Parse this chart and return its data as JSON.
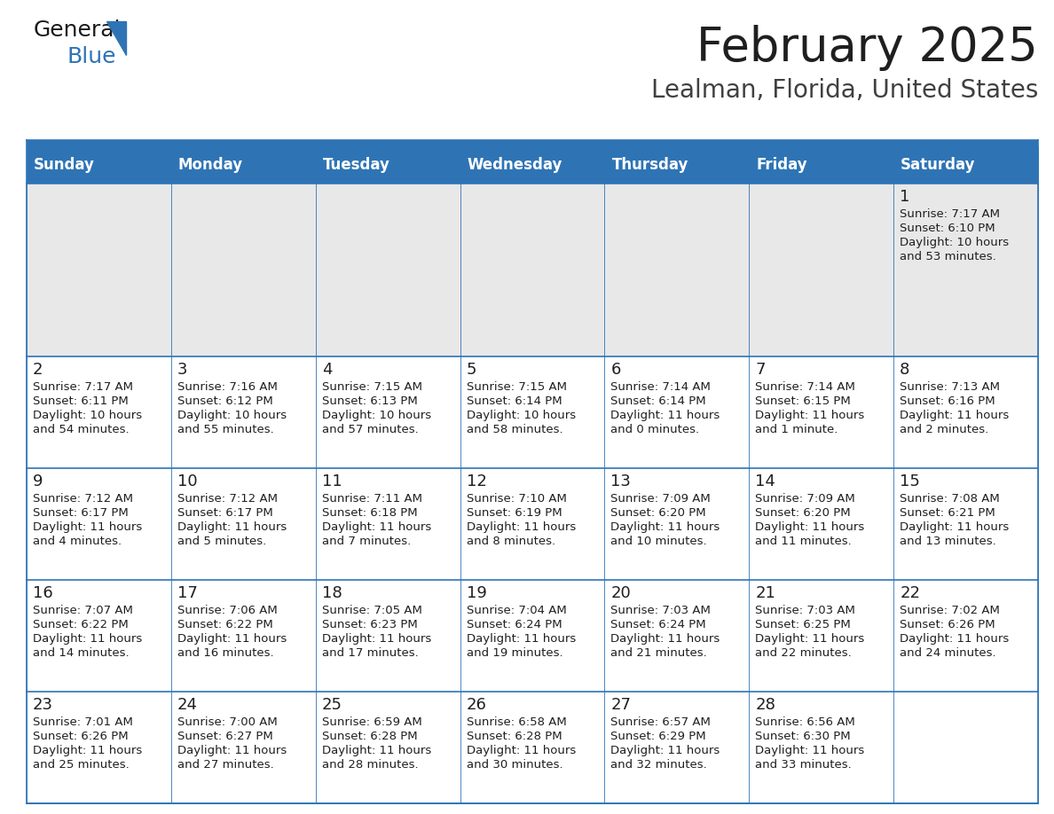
{
  "title": "February 2025",
  "subtitle": "Lealman, Florida, United States",
  "header_bg": "#2E74B5",
  "header_text_color": "#FFFFFF",
  "row0_bg": "#E8E8E8",
  "cell_bg_white": "#FFFFFF",
  "border_color": "#2E74B5",
  "day_headers": [
    "Sunday",
    "Monday",
    "Tuesday",
    "Wednesday",
    "Thursday",
    "Friday",
    "Saturday"
  ],
  "title_color": "#1F1F1F",
  "subtitle_color": "#404040",
  "cell_text_color": "#1F1F1F",
  "logo_general_color": "#1A1A1A",
  "logo_blue_color": "#2E74B5",
  "logo_triangle_color": "#2E74B5",
  "days": [
    {
      "day": 1,
      "col": 6,
      "row": 0,
      "sunrise": "7:17 AM",
      "sunset": "6:10 PM",
      "daylight": "10 hours and 53 minutes."
    },
    {
      "day": 2,
      "col": 0,
      "row": 1,
      "sunrise": "7:17 AM",
      "sunset": "6:11 PM",
      "daylight": "10 hours and 54 minutes."
    },
    {
      "day": 3,
      "col": 1,
      "row": 1,
      "sunrise": "7:16 AM",
      "sunset": "6:12 PM",
      "daylight": "10 hours and 55 minutes."
    },
    {
      "day": 4,
      "col": 2,
      "row": 1,
      "sunrise": "7:15 AM",
      "sunset": "6:13 PM",
      "daylight": "10 hours and 57 minutes."
    },
    {
      "day": 5,
      "col": 3,
      "row": 1,
      "sunrise": "7:15 AM",
      "sunset": "6:14 PM",
      "daylight": "10 hours and 58 minutes."
    },
    {
      "day": 6,
      "col": 4,
      "row": 1,
      "sunrise": "7:14 AM",
      "sunset": "6:14 PM",
      "daylight": "11 hours and 0 minutes."
    },
    {
      "day": 7,
      "col": 5,
      "row": 1,
      "sunrise": "7:14 AM",
      "sunset": "6:15 PM",
      "daylight": "11 hours and 1 minute."
    },
    {
      "day": 8,
      "col": 6,
      "row": 1,
      "sunrise": "7:13 AM",
      "sunset": "6:16 PM",
      "daylight": "11 hours and 2 minutes."
    },
    {
      "day": 9,
      "col": 0,
      "row": 2,
      "sunrise": "7:12 AM",
      "sunset": "6:17 PM",
      "daylight": "11 hours and 4 minutes."
    },
    {
      "day": 10,
      "col": 1,
      "row": 2,
      "sunrise": "7:12 AM",
      "sunset": "6:17 PM",
      "daylight": "11 hours and 5 minutes."
    },
    {
      "day": 11,
      "col": 2,
      "row": 2,
      "sunrise": "7:11 AM",
      "sunset": "6:18 PM",
      "daylight": "11 hours and 7 minutes."
    },
    {
      "day": 12,
      "col": 3,
      "row": 2,
      "sunrise": "7:10 AM",
      "sunset": "6:19 PM",
      "daylight": "11 hours and 8 minutes."
    },
    {
      "day": 13,
      "col": 4,
      "row": 2,
      "sunrise": "7:09 AM",
      "sunset": "6:20 PM",
      "daylight": "11 hours and 10 minutes."
    },
    {
      "day": 14,
      "col": 5,
      "row": 2,
      "sunrise": "7:09 AM",
      "sunset": "6:20 PM",
      "daylight": "11 hours and 11 minutes."
    },
    {
      "day": 15,
      "col": 6,
      "row": 2,
      "sunrise": "7:08 AM",
      "sunset": "6:21 PM",
      "daylight": "11 hours and 13 minutes."
    },
    {
      "day": 16,
      "col": 0,
      "row": 3,
      "sunrise": "7:07 AM",
      "sunset": "6:22 PM",
      "daylight": "11 hours and 14 minutes."
    },
    {
      "day": 17,
      "col": 1,
      "row": 3,
      "sunrise": "7:06 AM",
      "sunset": "6:22 PM",
      "daylight": "11 hours and 16 minutes."
    },
    {
      "day": 18,
      "col": 2,
      "row": 3,
      "sunrise": "7:05 AM",
      "sunset": "6:23 PM",
      "daylight": "11 hours and 17 minutes."
    },
    {
      "day": 19,
      "col": 3,
      "row": 3,
      "sunrise": "7:04 AM",
      "sunset": "6:24 PM",
      "daylight": "11 hours and 19 minutes."
    },
    {
      "day": 20,
      "col": 4,
      "row": 3,
      "sunrise": "7:03 AM",
      "sunset": "6:24 PM",
      "daylight": "11 hours and 21 minutes."
    },
    {
      "day": 21,
      "col": 5,
      "row": 3,
      "sunrise": "7:03 AM",
      "sunset": "6:25 PM",
      "daylight": "11 hours and 22 minutes."
    },
    {
      "day": 22,
      "col": 6,
      "row": 3,
      "sunrise": "7:02 AM",
      "sunset": "6:26 PM",
      "daylight": "11 hours and 24 minutes."
    },
    {
      "day": 23,
      "col": 0,
      "row": 4,
      "sunrise": "7:01 AM",
      "sunset": "6:26 PM",
      "daylight": "11 hours and 25 minutes."
    },
    {
      "day": 24,
      "col": 1,
      "row": 4,
      "sunrise": "7:00 AM",
      "sunset": "6:27 PM",
      "daylight": "11 hours and 27 minutes."
    },
    {
      "day": 25,
      "col": 2,
      "row": 4,
      "sunrise": "6:59 AM",
      "sunset": "6:28 PM",
      "daylight": "11 hours and 28 minutes."
    },
    {
      "day": 26,
      "col": 3,
      "row": 4,
      "sunrise": "6:58 AM",
      "sunset": "6:28 PM",
      "daylight": "11 hours and 30 minutes."
    },
    {
      "day": 27,
      "col": 4,
      "row": 4,
      "sunrise": "6:57 AM",
      "sunset": "6:29 PM",
      "daylight": "11 hours and 32 minutes."
    },
    {
      "day": 28,
      "col": 5,
      "row": 4,
      "sunrise": "6:56 AM",
      "sunset": "6:30 PM",
      "daylight": "11 hours and 33 minutes."
    }
  ]
}
